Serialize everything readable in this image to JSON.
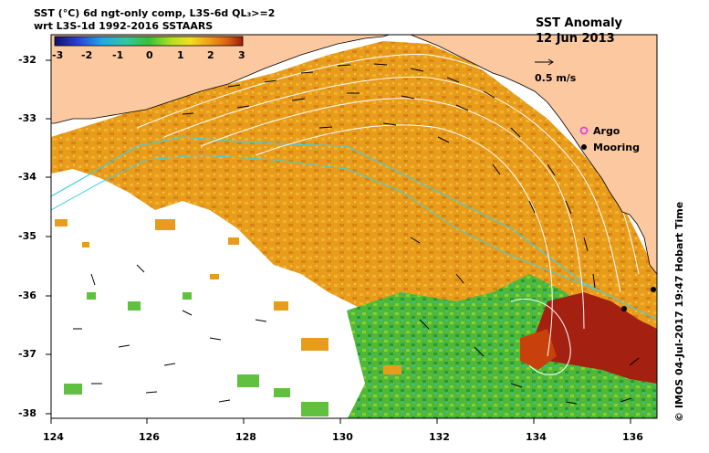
{
  "header": {
    "line1": "SST (°C) 6d ngt-only comp, L3S-6d QL₃>=2",
    "line2": "wrt L3S-1d 1992-2016 SSTAARS"
  },
  "colorbar": {
    "ticks": [
      "-3",
      "-2",
      "-1",
      "0",
      "1",
      "2",
      "3"
    ],
    "min": -3,
    "max": 3,
    "colors": [
      "#10106a",
      "#2a3fd6",
      "#1fa8e6",
      "#30c8a0",
      "#38c038",
      "#b4e020",
      "#f0e020",
      "#f2a018",
      "#d86010",
      "#9a1c0c"
    ]
  },
  "legend": {
    "title": "SST Anomaly",
    "date": "12 Jun 2013",
    "speed_label": "0.5 m/s",
    "argo_label": "Argo",
    "mooring_label": "Mooring",
    "argo_color": "#e040e0"
  },
  "axes": {
    "x_ticks": [
      "124",
      "126",
      "128",
      "130",
      "132",
      "134",
      "136"
    ],
    "y_ticks": [
      "-32",
      "-33",
      "-34",
      "-35",
      "-36",
      "-37",
      "-38"
    ],
    "xlim": [
      124,
      136.5
    ],
    "ylim": [
      -38.1,
      -31.5
    ]
  },
  "credit": "© IMOS 04-Jul-2017 19:47 Hobart Time",
  "colors": {
    "land": "#fcc8a0",
    "warm": "#e89a18",
    "hot": "#a01e0c",
    "cool": "#58c040",
    "contour": "#ffffff",
    "isobath": "#40d0e0"
  }
}
